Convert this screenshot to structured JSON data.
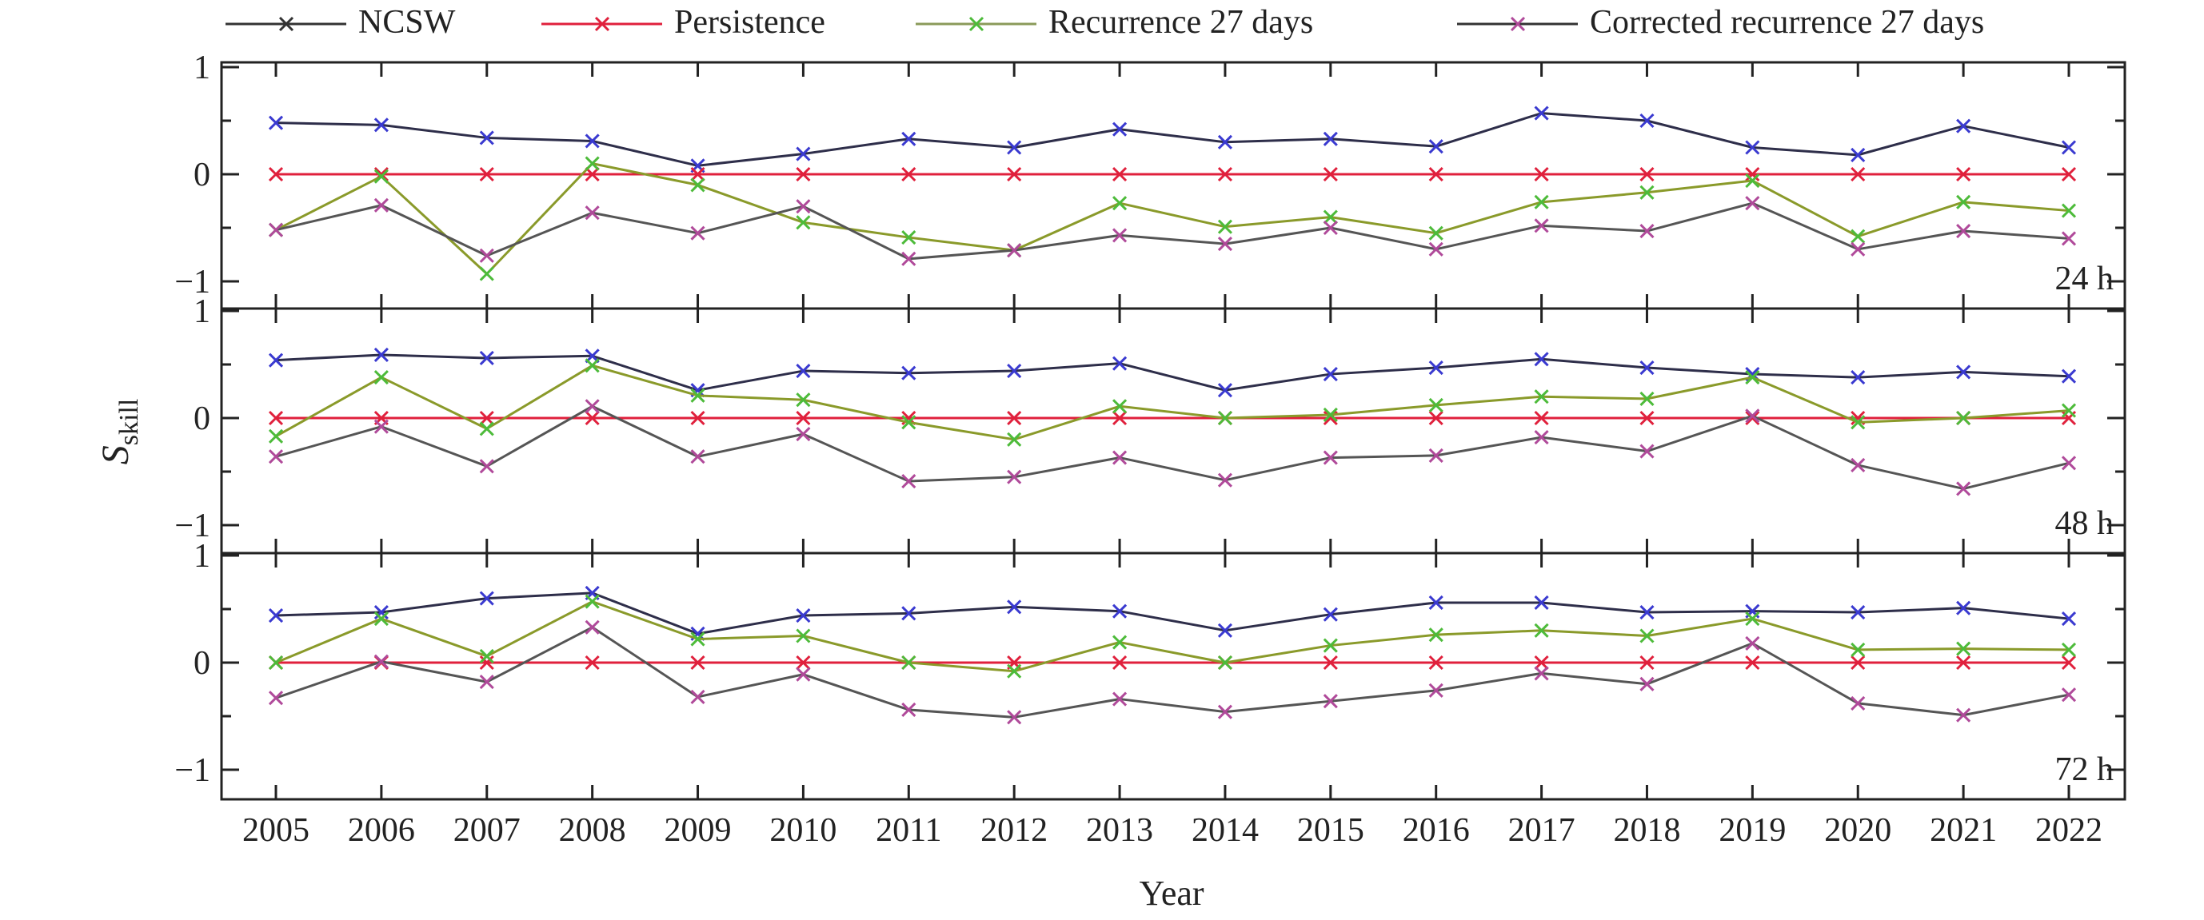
{
  "chart_data": {
    "type": "line",
    "xlabel": "Year",
    "ylabel_main": "S",
    "ylabel_sub": "skill",
    "categories": [
      "2005",
      "2006",
      "2007",
      "2008",
      "2009",
      "2010",
      "2011",
      "2012",
      "2013",
      "2014",
      "2015",
      "2016",
      "2017",
      "2018",
      "2019",
      "2020",
      "2021",
      "2022"
    ],
    "ylim": [
      -1.3,
      1
    ],
    "yticks": [
      "1",
      "0",
      "−1"
    ],
    "legend": {
      "placement": "top",
      "entries": [
        {
          "name": "NCSW",
          "line_color": "#333333",
          "marker_color": "#333333"
        },
        {
          "name": "Persistence",
          "line_color": "#e0203c",
          "marker_color": "#e0203c"
        },
        {
          "name": "Recurrence 27 days",
          "line_color": "#8a9a5a",
          "marker_color": "#4dbb3a"
        },
        {
          "name": "Corrected recurrence 27 days",
          "line_color": "#333333",
          "marker_color": "#b04a9a"
        }
      ]
    },
    "panels": [
      {
        "label": "24 h",
        "series": [
          {
            "name": "NCSW",
            "line_color": "#2e2e4a",
            "marker_color": "#3a3ad0",
            "values": [
              0.48,
              0.46,
              0.34,
              0.31,
              0.08,
              0.19,
              0.33,
              0.25,
              0.42,
              0.3,
              0.33,
              0.26,
              0.57,
              0.5,
              0.25,
              0.18,
              0.45,
              0.25
            ]
          },
          {
            "name": "Persistence",
            "line_color": "#e0203c",
            "marker_color": "#e0203c",
            "values": [
              0,
              0,
              0,
              0,
              0,
              0,
              0,
              0,
              0,
              0,
              0,
              0,
              0,
              0,
              0,
              0,
              0,
              0
            ]
          },
          {
            "name": "Recurrence 27 days",
            "line_color": "#8a9a2a",
            "marker_color": "#4dbb3a",
            "values": [
              -0.52,
              -0.02,
              -0.93,
              0.1,
              -0.1,
              -0.45,
              -0.59,
              -0.71,
              -0.27,
              -0.49,
              -0.4,
              -0.55,
              -0.26,
              -0.17,
              -0.06,
              -0.58,
              -0.26,
              -0.34
            ]
          },
          {
            "name": "Corrected recurrence 27 days",
            "line_color": "#555555",
            "marker_color": "#b04a9a",
            "values": [
              -0.52,
              -0.29,
              -0.76,
              -0.36,
              -0.55,
              -0.3,
              -0.79,
              -0.71,
              -0.57,
              -0.65,
              -0.5,
              -0.7,
              -0.48,
              -0.53,
              -0.27,
              -0.7,
              -0.53,
              -0.6
            ]
          }
        ]
      },
      {
        "label": "48 h",
        "series": [
          {
            "name": "NCSW",
            "line_color": "#2e2e4a",
            "marker_color": "#3a3ad0",
            "values": [
              0.54,
              0.59,
              0.56,
              0.58,
              0.26,
              0.44,
              0.42,
              0.44,
              0.51,
              0.26,
              0.41,
              0.47,
              0.55,
              0.47,
              0.41,
              0.38,
              0.43,
              0.39
            ]
          },
          {
            "name": "Persistence",
            "line_color": "#e0203c",
            "marker_color": "#e0203c",
            "values": [
              0,
              0,
              0,
              0,
              0,
              0,
              0,
              0,
              0,
              0,
              0,
              0,
              0,
              0,
              0,
              0,
              0,
              0
            ]
          },
          {
            "name": "Recurrence 27 days",
            "line_color": "#8a9a2a",
            "marker_color": "#4dbb3a",
            "values": [
              -0.17,
              0.38,
              -0.1,
              0.49,
              0.21,
              0.17,
              -0.04,
              -0.2,
              0.11,
              0.0,
              0.03,
              0.12,
              0.2,
              0.18,
              0.38,
              -0.04,
              0.0,
              0.07
            ]
          },
          {
            "name": "Corrected recurrence 27 days",
            "line_color": "#555555",
            "marker_color": "#b04a9a",
            "values": [
              -0.36,
              -0.08,
              -0.45,
              0.11,
              -0.36,
              -0.15,
              -0.59,
              -0.55,
              -0.37,
              -0.58,
              -0.37,
              -0.35,
              -0.18,
              -0.31,
              0.02,
              -0.44,
              -0.66,
              -0.42
            ]
          }
        ]
      },
      {
        "label": "72 h",
        "series": [
          {
            "name": "NCSW",
            "line_color": "#2e2e4a",
            "marker_color": "#3a3ad0",
            "values": [
              0.44,
              0.47,
              0.6,
              0.65,
              0.27,
              0.44,
              0.46,
              0.52,
              0.48,
              0.3,
              0.45,
              0.56,
              0.56,
              0.47,
              0.48,
              0.47,
              0.51,
              0.41
            ]
          },
          {
            "name": "Persistence",
            "line_color": "#e0203c",
            "marker_color": "#e0203c",
            "values": [
              0,
              0,
              0,
              0,
              0,
              0,
              0,
              0,
              0,
              0,
              0,
              0,
              0,
              0,
              0,
              0,
              0,
              0
            ]
          },
          {
            "name": "Recurrence 27 days",
            "line_color": "#8a9a2a",
            "marker_color": "#4dbb3a",
            "values": [
              0.0,
              0.41,
              0.06,
              0.57,
              0.22,
              0.25,
              0.0,
              -0.08,
              0.19,
              0.0,
              0.16,
              0.26,
              0.3,
              0.25,
              0.41,
              0.12,
              0.13,
              0.12
            ]
          },
          {
            "name": "Corrected recurrence 27 days",
            "line_color": "#555555",
            "marker_color": "#b04a9a",
            "values": [
              -0.33,
              0.01,
              -0.18,
              0.33,
              -0.32,
              -0.11,
              -0.44,
              -0.51,
              -0.34,
              -0.46,
              -0.36,
              -0.26,
              -0.1,
              -0.2,
              0.18,
              -0.38,
              -0.49,
              -0.3
            ]
          }
        ]
      }
    ]
  }
}
